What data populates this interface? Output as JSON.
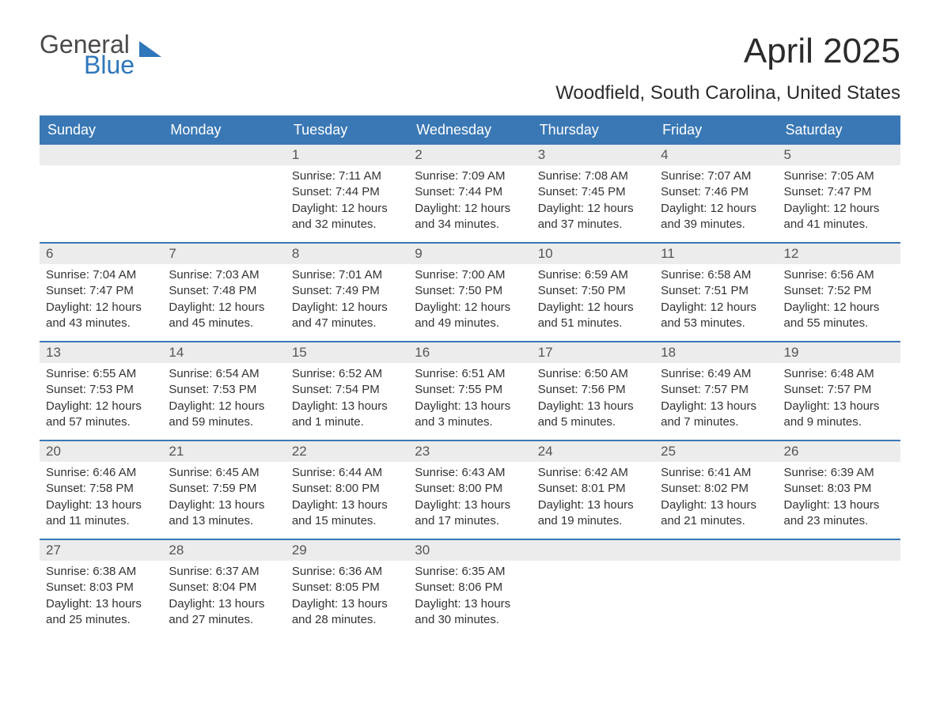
{
  "logo": {
    "line1": "General",
    "line2": "Blue"
  },
  "title": "April 2025",
  "subtitle": "Woodfield, South Carolina, United States",
  "colors": {
    "header_bg": "#3a78b5",
    "header_text": "#ffffff",
    "daynum_bg": "#ececec",
    "daynum_text": "#555555",
    "body_text": "#333333",
    "logo_gray": "#4a4a4a",
    "logo_blue": "#2f77bb",
    "week_border": "#3a78b5",
    "page_bg": "#ffffff"
  },
  "fonts": {
    "title_size_pt": 33,
    "subtitle_size_pt": 18,
    "header_size_pt": 14,
    "daynum_size_pt": 13,
    "body_size_pt": 11,
    "logo_size_pt": 24
  },
  "day_names": [
    "Sunday",
    "Monday",
    "Tuesday",
    "Wednesday",
    "Thursday",
    "Friday",
    "Saturday"
  ],
  "weeks": [
    [
      {
        "num": "",
        "sunrise": "",
        "sunset": "",
        "daylight": ""
      },
      {
        "num": "",
        "sunrise": "",
        "sunset": "",
        "daylight": ""
      },
      {
        "num": "1",
        "sunrise": "Sunrise: 7:11 AM",
        "sunset": "Sunset: 7:44 PM",
        "daylight": "Daylight: 12 hours and 32 minutes."
      },
      {
        "num": "2",
        "sunrise": "Sunrise: 7:09 AM",
        "sunset": "Sunset: 7:44 PM",
        "daylight": "Daylight: 12 hours and 34 minutes."
      },
      {
        "num": "3",
        "sunrise": "Sunrise: 7:08 AM",
        "sunset": "Sunset: 7:45 PM",
        "daylight": "Daylight: 12 hours and 37 minutes."
      },
      {
        "num": "4",
        "sunrise": "Sunrise: 7:07 AM",
        "sunset": "Sunset: 7:46 PM",
        "daylight": "Daylight: 12 hours and 39 minutes."
      },
      {
        "num": "5",
        "sunrise": "Sunrise: 7:05 AM",
        "sunset": "Sunset: 7:47 PM",
        "daylight": "Daylight: 12 hours and 41 minutes."
      }
    ],
    [
      {
        "num": "6",
        "sunrise": "Sunrise: 7:04 AM",
        "sunset": "Sunset: 7:47 PM",
        "daylight": "Daylight: 12 hours and 43 minutes."
      },
      {
        "num": "7",
        "sunrise": "Sunrise: 7:03 AM",
        "sunset": "Sunset: 7:48 PM",
        "daylight": "Daylight: 12 hours and 45 minutes."
      },
      {
        "num": "8",
        "sunrise": "Sunrise: 7:01 AM",
        "sunset": "Sunset: 7:49 PM",
        "daylight": "Daylight: 12 hours and 47 minutes."
      },
      {
        "num": "9",
        "sunrise": "Sunrise: 7:00 AM",
        "sunset": "Sunset: 7:50 PM",
        "daylight": "Daylight: 12 hours and 49 minutes."
      },
      {
        "num": "10",
        "sunrise": "Sunrise: 6:59 AM",
        "sunset": "Sunset: 7:50 PM",
        "daylight": "Daylight: 12 hours and 51 minutes."
      },
      {
        "num": "11",
        "sunrise": "Sunrise: 6:58 AM",
        "sunset": "Sunset: 7:51 PM",
        "daylight": "Daylight: 12 hours and 53 minutes."
      },
      {
        "num": "12",
        "sunrise": "Sunrise: 6:56 AM",
        "sunset": "Sunset: 7:52 PM",
        "daylight": "Daylight: 12 hours and 55 minutes."
      }
    ],
    [
      {
        "num": "13",
        "sunrise": "Sunrise: 6:55 AM",
        "sunset": "Sunset: 7:53 PM",
        "daylight": "Daylight: 12 hours and 57 minutes."
      },
      {
        "num": "14",
        "sunrise": "Sunrise: 6:54 AM",
        "sunset": "Sunset: 7:53 PM",
        "daylight": "Daylight: 12 hours and 59 minutes."
      },
      {
        "num": "15",
        "sunrise": "Sunrise: 6:52 AM",
        "sunset": "Sunset: 7:54 PM",
        "daylight": "Daylight: 13 hours and 1 minute."
      },
      {
        "num": "16",
        "sunrise": "Sunrise: 6:51 AM",
        "sunset": "Sunset: 7:55 PM",
        "daylight": "Daylight: 13 hours and 3 minutes."
      },
      {
        "num": "17",
        "sunrise": "Sunrise: 6:50 AM",
        "sunset": "Sunset: 7:56 PM",
        "daylight": "Daylight: 13 hours and 5 minutes."
      },
      {
        "num": "18",
        "sunrise": "Sunrise: 6:49 AM",
        "sunset": "Sunset: 7:57 PM",
        "daylight": "Daylight: 13 hours and 7 minutes."
      },
      {
        "num": "19",
        "sunrise": "Sunrise: 6:48 AM",
        "sunset": "Sunset: 7:57 PM",
        "daylight": "Daylight: 13 hours and 9 minutes."
      }
    ],
    [
      {
        "num": "20",
        "sunrise": "Sunrise: 6:46 AM",
        "sunset": "Sunset: 7:58 PM",
        "daylight": "Daylight: 13 hours and 11 minutes."
      },
      {
        "num": "21",
        "sunrise": "Sunrise: 6:45 AM",
        "sunset": "Sunset: 7:59 PM",
        "daylight": "Daylight: 13 hours and 13 minutes."
      },
      {
        "num": "22",
        "sunrise": "Sunrise: 6:44 AM",
        "sunset": "Sunset: 8:00 PM",
        "daylight": "Daylight: 13 hours and 15 minutes."
      },
      {
        "num": "23",
        "sunrise": "Sunrise: 6:43 AM",
        "sunset": "Sunset: 8:00 PM",
        "daylight": "Daylight: 13 hours and 17 minutes."
      },
      {
        "num": "24",
        "sunrise": "Sunrise: 6:42 AM",
        "sunset": "Sunset: 8:01 PM",
        "daylight": "Daylight: 13 hours and 19 minutes."
      },
      {
        "num": "25",
        "sunrise": "Sunrise: 6:41 AM",
        "sunset": "Sunset: 8:02 PM",
        "daylight": "Daylight: 13 hours and 21 minutes."
      },
      {
        "num": "26",
        "sunrise": "Sunrise: 6:39 AM",
        "sunset": "Sunset: 8:03 PM",
        "daylight": "Daylight: 13 hours and 23 minutes."
      }
    ],
    [
      {
        "num": "27",
        "sunrise": "Sunrise: 6:38 AM",
        "sunset": "Sunset: 8:03 PM",
        "daylight": "Daylight: 13 hours and 25 minutes."
      },
      {
        "num": "28",
        "sunrise": "Sunrise: 6:37 AM",
        "sunset": "Sunset: 8:04 PM",
        "daylight": "Daylight: 13 hours and 27 minutes."
      },
      {
        "num": "29",
        "sunrise": "Sunrise: 6:36 AM",
        "sunset": "Sunset: 8:05 PM",
        "daylight": "Daylight: 13 hours and 28 minutes."
      },
      {
        "num": "30",
        "sunrise": "Sunrise: 6:35 AM",
        "sunset": "Sunset: 8:06 PM",
        "daylight": "Daylight: 13 hours and 30 minutes."
      },
      {
        "num": "",
        "sunrise": "",
        "sunset": "",
        "daylight": ""
      },
      {
        "num": "",
        "sunrise": "",
        "sunset": "",
        "daylight": ""
      },
      {
        "num": "",
        "sunrise": "",
        "sunset": "",
        "daylight": ""
      }
    ]
  ]
}
